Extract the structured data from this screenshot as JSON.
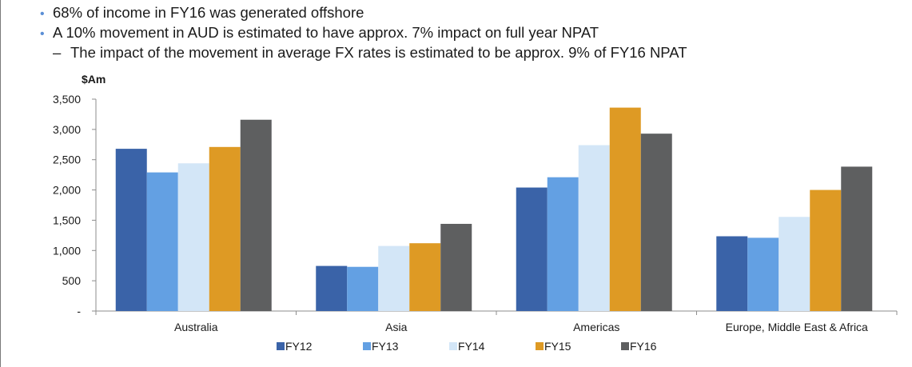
{
  "bullets": [
    {
      "text": "68% of income  in FY16 was generated offshore"
    },
    {
      "text": "A 10% movement  in AUD is estimated to have approx. 7% impact on full year NPAT"
    }
  ],
  "sub_bullet": {
    "dash": "–",
    "text": "The impact of the movement in average FX rates is estimated to be approx. 9% of FY16 NPAT"
  },
  "chart_data": {
    "type": "bar",
    "ylabel": "$Am",
    "ylim": [
      0,
      3500
    ],
    "yticks": [
      0,
      500,
      1000,
      1500,
      2000,
      2500,
      3000,
      3500
    ],
    "ytick_labels": [
      "-",
      "500",
      "1,000",
      "1,500",
      "2,000",
      "2,500",
      "3,000",
      "3,500"
    ],
    "categories": [
      "Australia",
      "Asia",
      "Americas",
      "Europe, Middle East & Africa"
    ],
    "series": [
      {
        "name": "FY12",
        "color": "#3a63a8",
        "values": [
          2680,
          745,
          2040,
          1235
        ]
      },
      {
        "name": "FY13",
        "color": "#63a0e3",
        "values": [
          2290,
          730,
          2210,
          1210
        ]
      },
      {
        "name": "FY14",
        "color": "#d3e6f7",
        "values": [
          2440,
          1075,
          2740,
          1555
        ]
      },
      {
        "name": "FY15",
        "color": "#de9a24",
        "values": [
          2710,
          1120,
          3360,
          2000
        ]
      },
      {
        "name": "FY16",
        "color": "#5e5f60",
        "values": [
          3160,
          1440,
          2930,
          2385
        ]
      }
    ],
    "legend_position": "bottom",
    "grid": false
  }
}
